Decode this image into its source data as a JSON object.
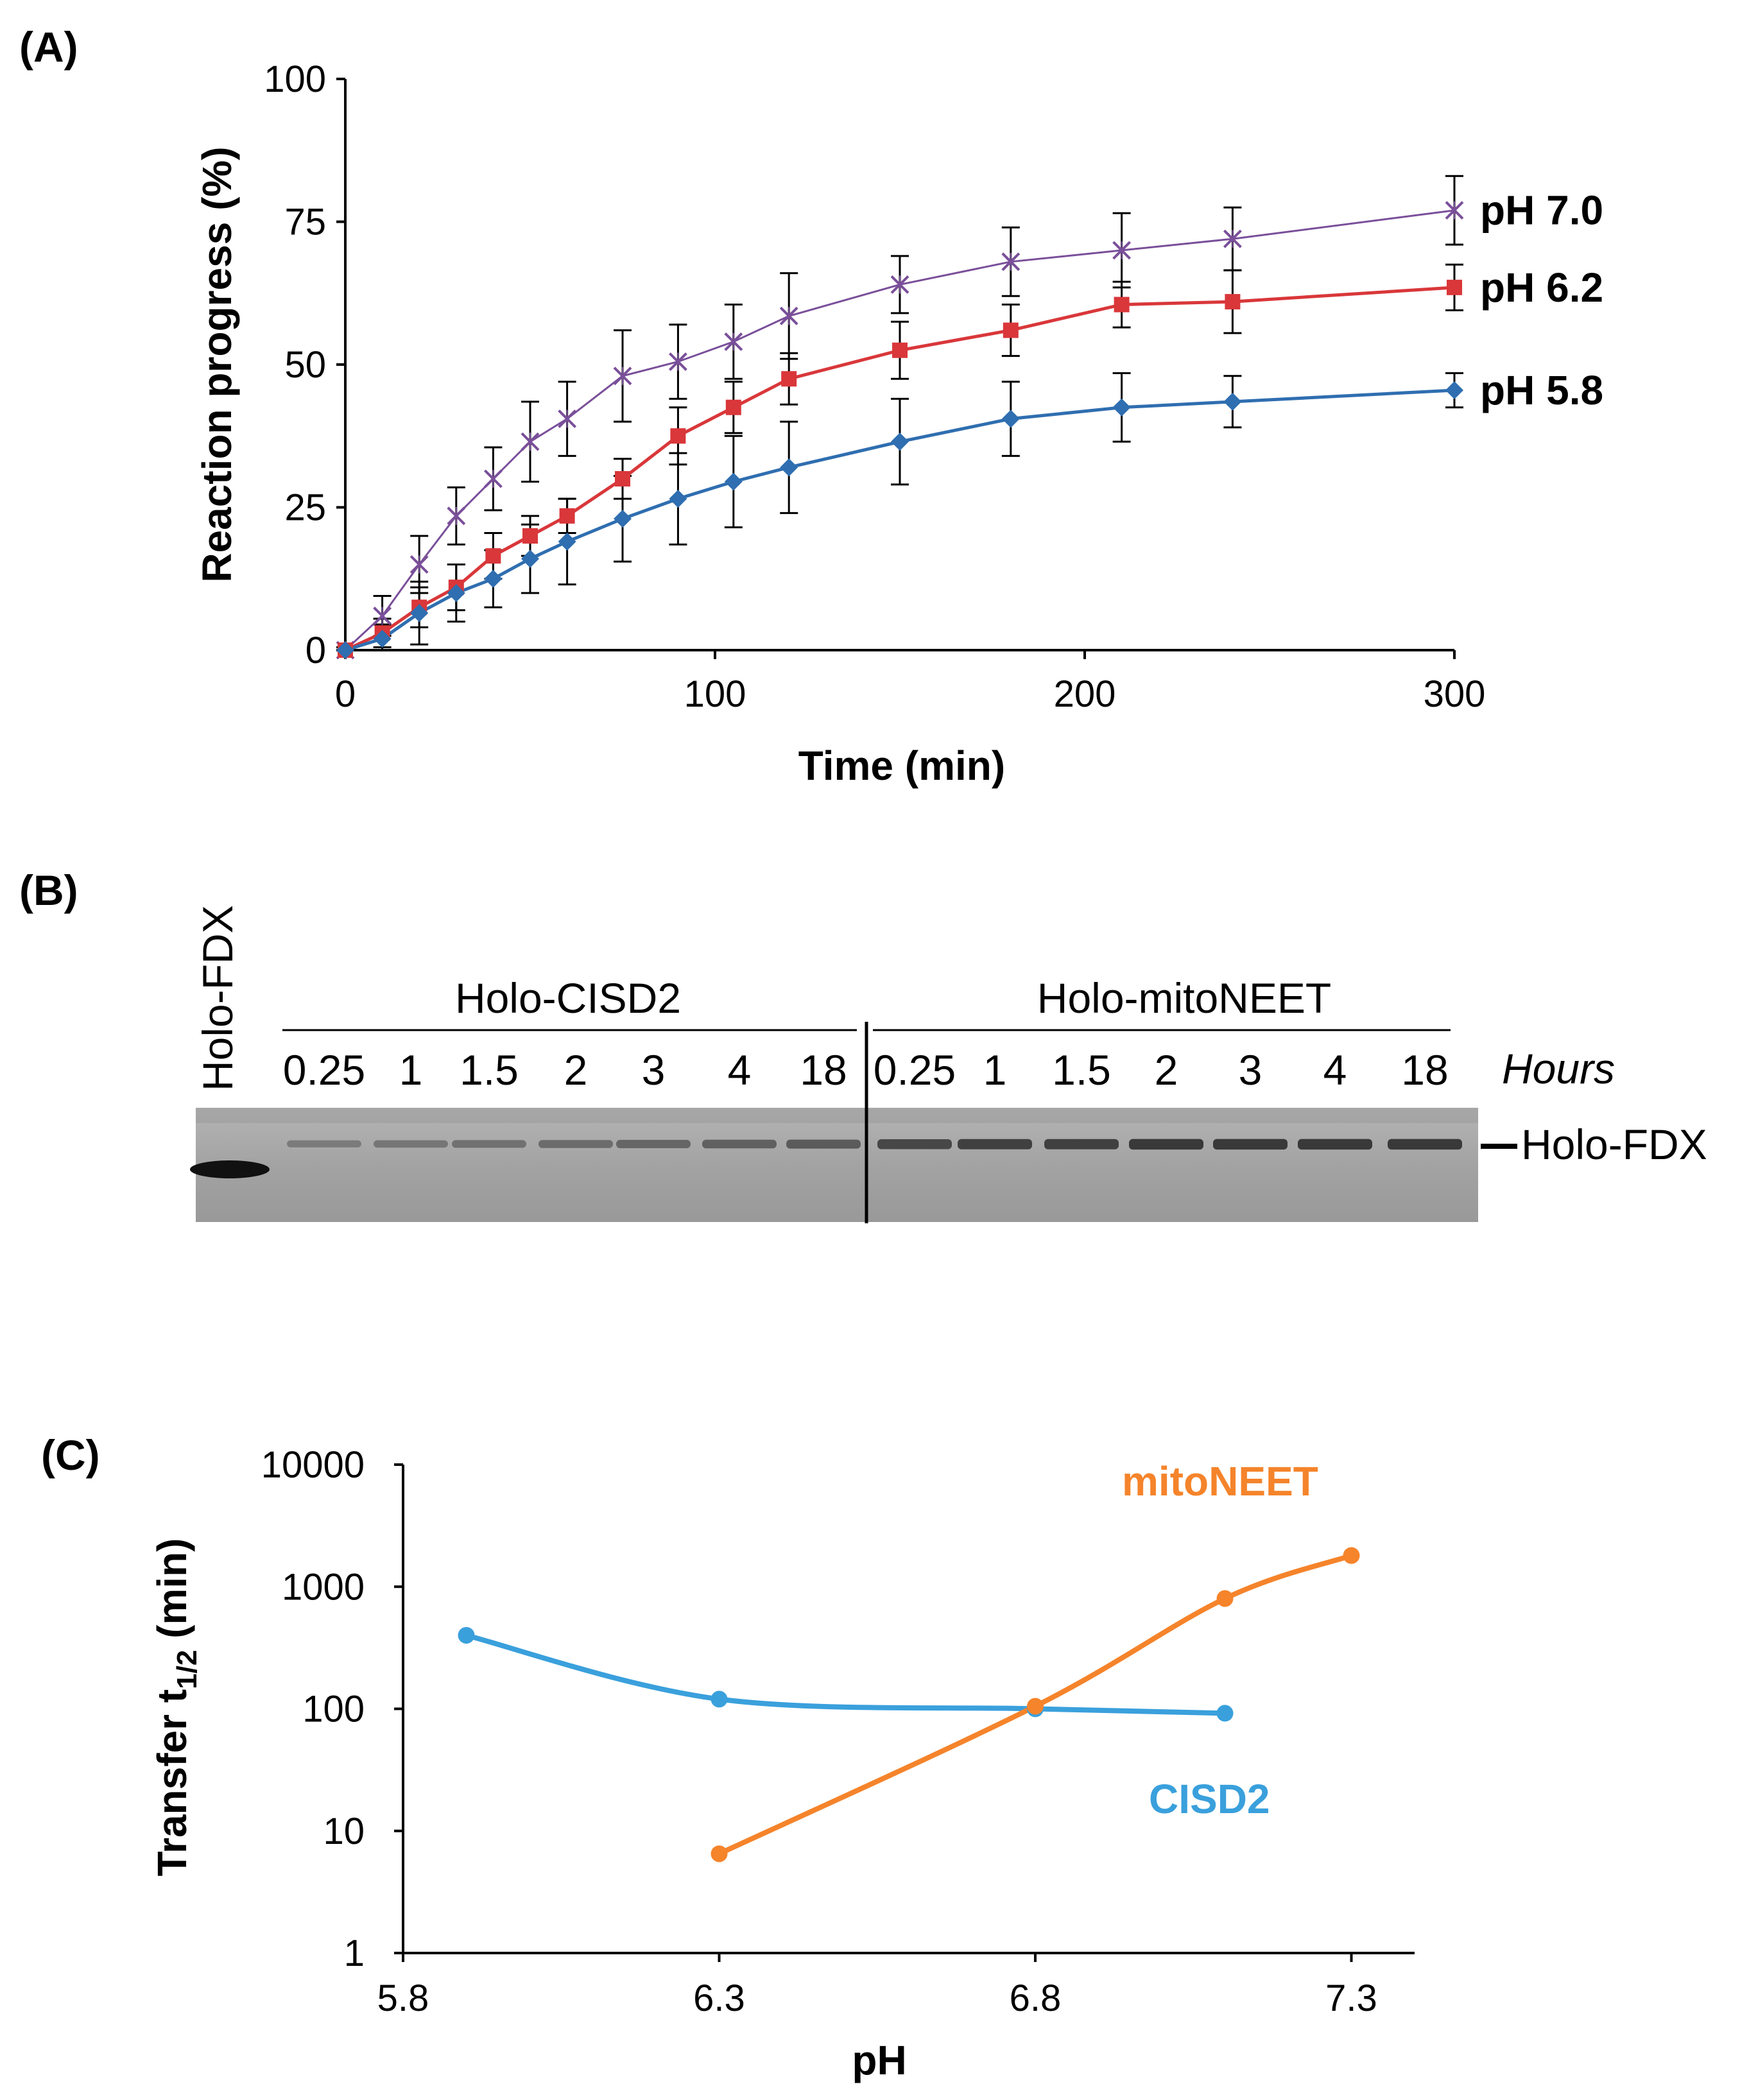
{
  "panels": {
    "a": {
      "label": "(A)"
    },
    "b": {
      "label": "(B)"
    },
    "c": {
      "label": "(C)"
    }
  },
  "chart_data": [
    {
      "type": "line",
      "panel": "A",
      "title": "",
      "xlabel": "Time (min)",
      "ylabel": "Reaction progress (%)",
      "xlim": [
        0,
        300
      ],
      "ylim": [
        0,
        100
      ],
      "xticks": [
        0,
        100,
        200,
        300
      ],
      "yticks": [
        0,
        25,
        50,
        75,
        100
      ],
      "x": [
        0,
        10,
        20,
        30,
        40,
        50,
        60,
        75,
        90,
        105,
        120,
        150,
        180,
        210,
        240,
        300
      ],
      "series": [
        {
          "name": "pH 7.0",
          "color": "#7a4f9a",
          "marker": "x",
          "values": [
            0,
            6,
            15,
            23.5,
            30,
            36.5,
            40.5,
            48,
            50.5,
            54,
            58.5,
            64,
            68,
            70,
            72,
            77
          ],
          "errors": [
            0.5,
            3.5,
            5,
            5,
            5.5,
            7,
            6.5,
            8,
            6.5,
            6.5,
            7.5,
            5,
            6,
            6.5,
            5.5,
            6
          ]
        },
        {
          "name": "pH 6.2",
          "color": "#d9373a",
          "marker": "square",
          "values": [
            0,
            3,
            7.5,
            11,
            16.5,
            20,
            23.5,
            30,
            37.5,
            42.5,
            47.5,
            52.5,
            56,
            60.5,
            61,
            63.5
          ],
          "errors": [
            0.5,
            2.5,
            3.5,
            4,
            4,
            3.5,
            3,
            3.5,
            5,
            4.5,
            4.5,
            5,
            4.5,
            4,
            5.5,
            4
          ]
        },
        {
          "name": "pH 5.8",
          "color": "#2f6eb0",
          "marker": "diamond",
          "values": [
            0,
            2,
            6.5,
            10,
            12.5,
            16,
            19,
            23,
            26.5,
            29.5,
            32,
            36.5,
            40.5,
            42.5,
            43.5,
            45.5
          ],
          "errors": [
            0.5,
            2.5,
            5.5,
            5,
            5,
            6,
            7.5,
            7.5,
            8,
            8,
            8,
            7.5,
            6.5,
            6,
            4.5,
            3
          ]
        }
      ]
    },
    {
      "type": "line",
      "panel": "C",
      "title": "",
      "xlabel": "pH",
      "ylabel": "Transfer t",
      "ylabel_sub": "1/2",
      "ylabel_unit": " (min)",
      "xlim": [
        5.8,
        7.4
      ],
      "xticks": [
        5.8,
        6.3,
        6.8,
        7.3
      ],
      "yscale": "log",
      "ylim": [
        1,
        10000
      ],
      "yticks": [
        1,
        10,
        100,
        1000,
        10000
      ],
      "series": [
        {
          "name": "CISD2",
          "color": "#3aa0dc",
          "x": [
            5.9,
            6.3,
            6.8,
            7.1
          ],
          "values": [
            400,
            120,
            100,
            92
          ]
        },
        {
          "name": "mitoNEET",
          "color": "#f5842b",
          "x": [
            6.3,
            6.8,
            7.1,
            7.3
          ],
          "values": [
            6.5,
            105,
            800,
            1800
          ]
        }
      ]
    }
  ],
  "gel": {
    "first_lane": "Holo-FDX",
    "groups": [
      {
        "name": "Holo-CISD2",
        "lanes": [
          "0.25",
          "1",
          "1.5",
          "2",
          "3",
          "4",
          "18"
        ]
      },
      {
        "name": "Holo-mitoNEET",
        "lanes": [
          "0.25",
          "1",
          "1.5",
          "2",
          "3",
          "4",
          "18"
        ]
      }
    ],
    "unit_label": "Hours",
    "band_label": "Holo-FDX",
    "band_intensity": {
      "standard": 1.0,
      "Holo-CISD2": [
        0.3,
        0.35,
        0.4,
        0.45,
        0.5,
        0.55,
        0.6
      ],
      "Holo-mitoNEET": [
        0.75,
        0.8,
        0.8,
        0.85,
        0.85,
        0.85,
        0.85
      ]
    }
  }
}
